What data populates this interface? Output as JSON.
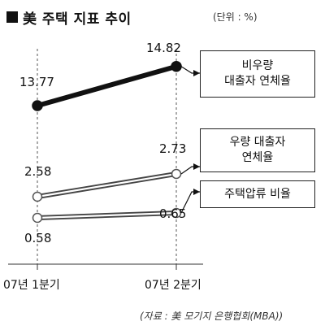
{
  "chart_data": {
    "type": "line",
    "title": "美 주택 지표 추이",
    "unit": "(단위 : %)",
    "source": "(자료 : 美 모기지 은행협회(MBA))",
    "categories": [
      "07년 1분기",
      "07년 2분기"
    ],
    "series": [
      {
        "name": "비우량 대출자 연체율",
        "values": [
          13.77,
          14.82
        ],
        "labels": [
          "13.77",
          "14.82"
        ],
        "style": "solid",
        "color": "#111111"
      },
      {
        "name": "우량 대출자 연체율",
        "values": [
          2.58,
          2.73
        ],
        "labels": [
          "2.58",
          "2.73"
        ],
        "style": "double",
        "color": "#555555"
      },
      {
        "name": "주택압류 비율",
        "values": [
          0.58,
          0.65
        ],
        "labels": [
          "0.58",
          "0.65"
        ],
        "style": "double",
        "color": "#555555"
      }
    ],
    "legend_lines": [
      [
        "비우량",
        "대출자 연체율"
      ],
      [
        "우량 대출자",
        "연체율"
      ],
      [
        "주택압류 비율"
      ]
    ],
    "grid": false,
    "legend": "right"
  }
}
